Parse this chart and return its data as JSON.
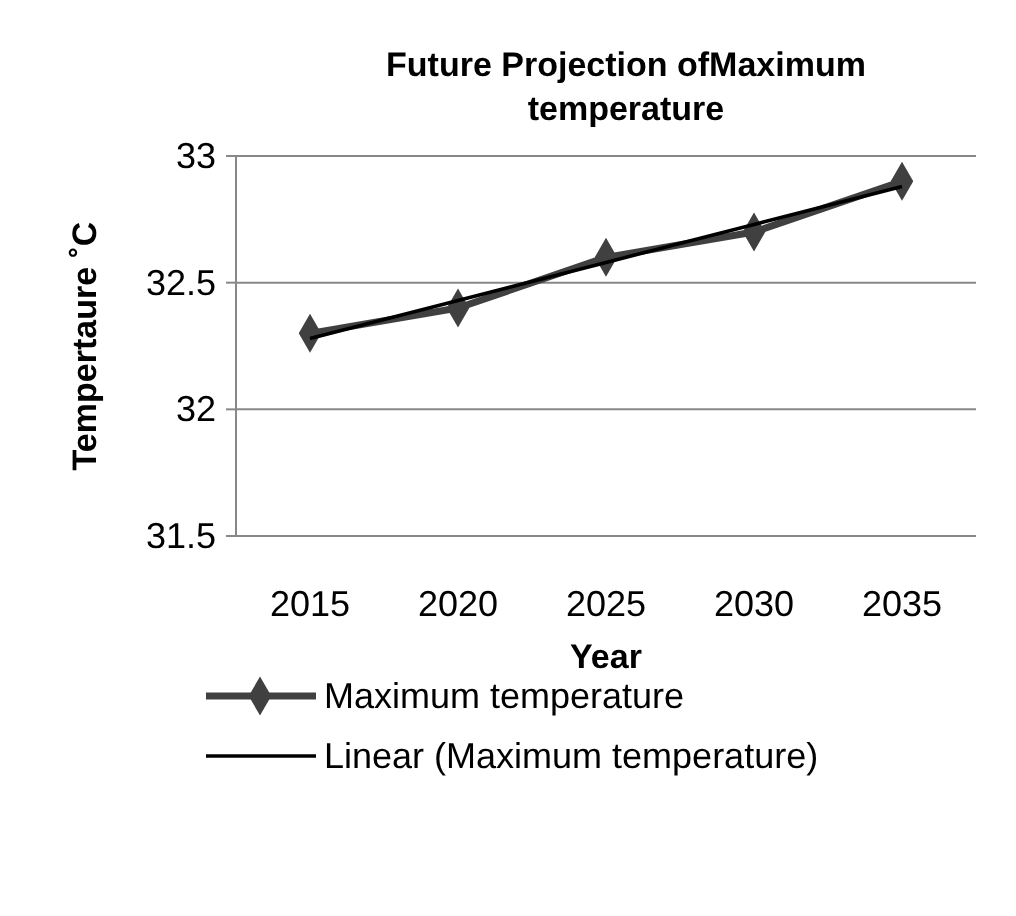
{
  "chart_data": {
    "type": "line",
    "title": "Future Projection ofMaximum temperature",
    "xlabel": "Year",
    "ylabel": "Tempertaure ˚C",
    "categories": [
      "2015",
      "2020",
      "2025",
      "2030",
      "2035"
    ],
    "series": [
      {
        "name": "Maximum temperature",
        "color": "#404040",
        "values": [
          32.3,
          32.4,
          32.6,
          32.7,
          32.9
        ],
        "marker": "diamond",
        "line_style": "solid"
      },
      {
        "name": "Linear (Maximum temperature)",
        "color": "#000000",
        "values": [
          32.28,
          32.43,
          32.58,
          32.73,
          32.88
        ],
        "marker": "none",
        "line_style": "solid"
      }
    ],
    "ylim": [
      31.5,
      33
    ],
    "yticks": [
      31.5,
      32,
      32.5,
      33
    ],
    "grid": "y",
    "legend": "bottom"
  }
}
